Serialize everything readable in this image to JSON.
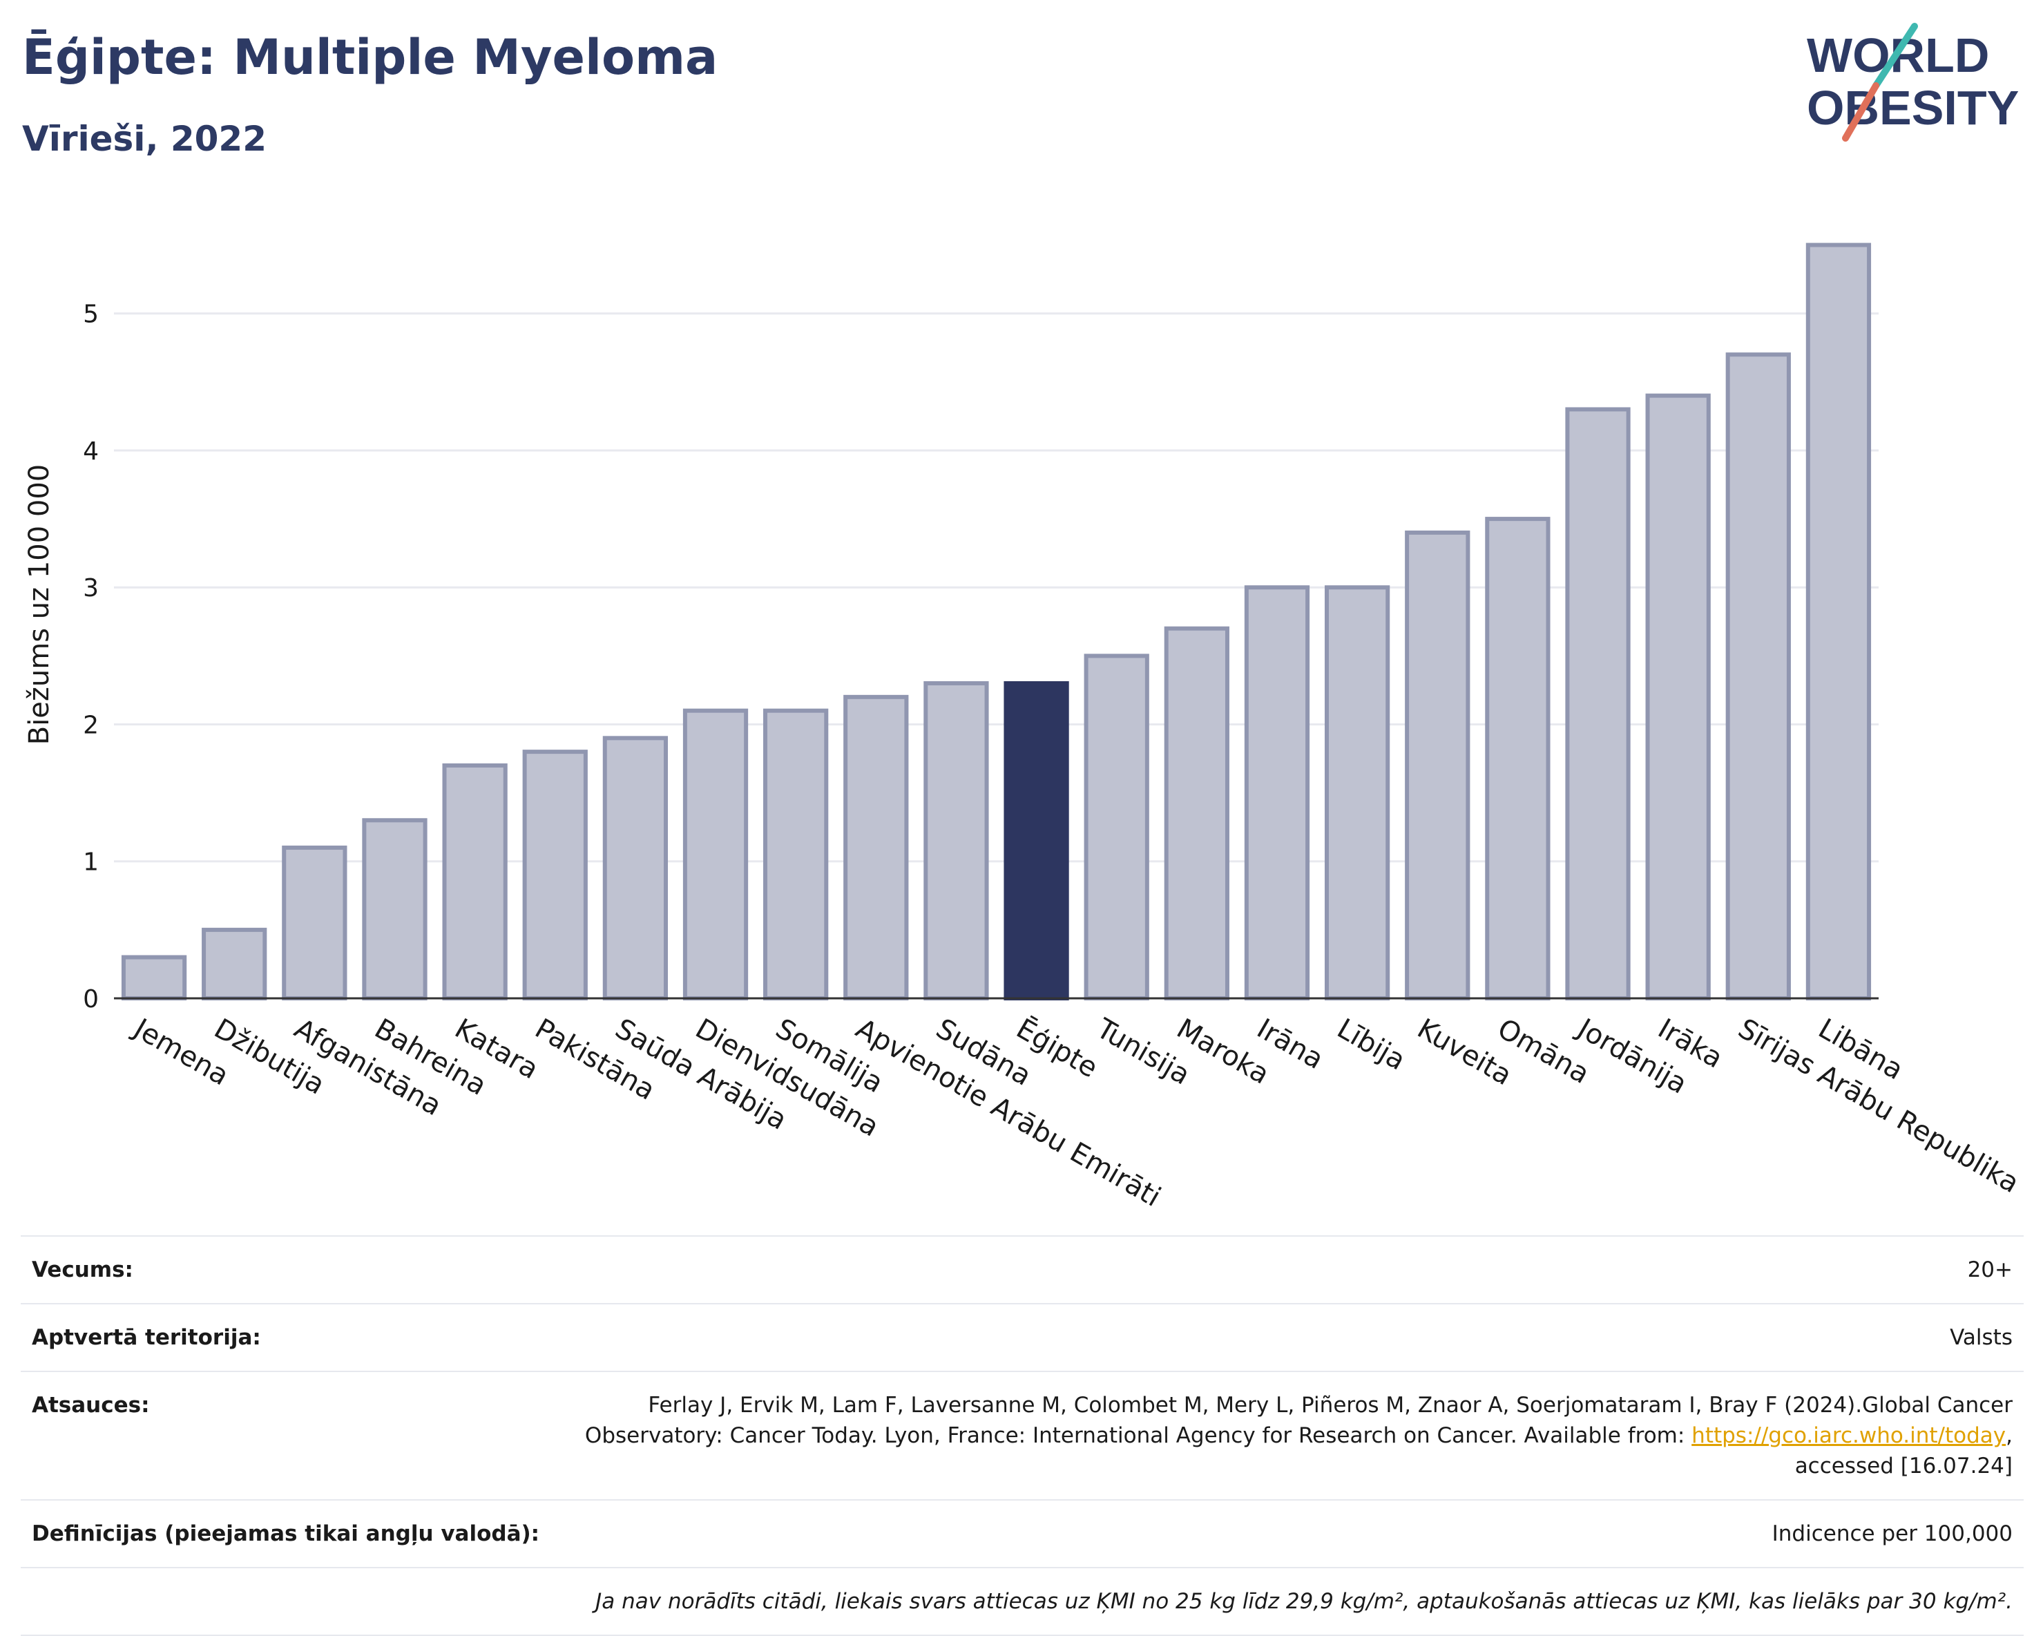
{
  "header": {
    "title": "Ēģipte: Multiple Myeloma",
    "subtitle": "Vīrieši, 2022"
  },
  "logo": {
    "line1": "WORLD",
    "line2": "OBESITY"
  },
  "colors": {
    "highlight": "#2d3660",
    "bar_fill": "#bfc2d1",
    "bar_stroke": "#9096b0",
    "title": "#2d3a64",
    "grid": "#e8e9ef"
  },
  "chart_data": {
    "type": "bar",
    "ylabel": "Biežums uz 100 000",
    "xlabel": "",
    "ylim": [
      0,
      5.75
    ],
    "yticks": [
      0,
      1,
      2,
      3,
      4,
      5
    ],
    "grid": true,
    "highlight_category": "Ēģipte",
    "categories": [
      "Jemena",
      "Džibutija",
      "Afganistāna",
      "Bahreina",
      "Katara",
      "Pakistāna",
      "Saūda Arābija",
      "Dienvidsudāna",
      "Somālija",
      "Apvienotie Arābu Emirāti",
      "Sudāna",
      "Ēģipte",
      "Tunisija",
      "Maroka",
      "Irāna",
      "Lībija",
      "Kuveita",
      "Omāna",
      "Jordānija",
      "Irāka",
      "Sīrijas Arābu Republika",
      "Libāna"
    ],
    "values": [
      0.3,
      0.5,
      1.1,
      1.3,
      1.7,
      1.8,
      1.9,
      2.1,
      2.1,
      2.2,
      2.3,
      2.3,
      2.5,
      2.7,
      3.0,
      3.0,
      3.4,
      3.5,
      4.3,
      4.4,
      4.7,
      5.5
    ]
  },
  "info": {
    "age_label": "Vecums:",
    "age_value": "20+",
    "territory_label": "Aptvertā teritorija:",
    "territory_value": "Valsts",
    "refs_label": "Atsauces:",
    "refs_text_1": "Ferlay J, Ervik M, Lam F, Laversanne M, Colombet M, Mery L, Piñeros M, Znaor A, Soerjomataram I, Bray F (2024).Global Cancer Observatory: Cancer Today. Lyon, France: International Agency for Research on Cancer. Available from: ",
    "refs_link": "https://gco.iarc.who.int/today",
    "refs_text_2": ", accessed [16.07.24]",
    "defs_label": "Definīcijas (pieejamas tikai angļu valodā):",
    "defs_value": "Indicence per 100,000",
    "note": "Ja nav norādīts citādi, liekais svars attiecas uz ĶMI no 25 kg līdz 29,9 kg/m², aptaukošanās attiecas uz ĶMI, kas lielāks par 30 kg/m²."
  }
}
